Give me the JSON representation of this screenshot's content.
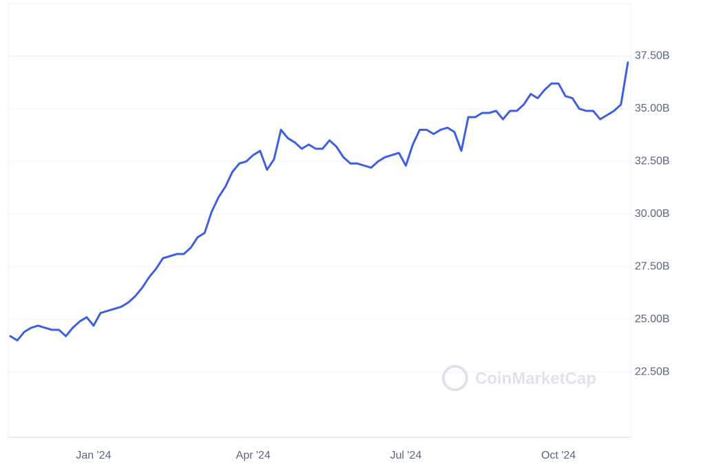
{
  "chart_data": {
    "type": "line",
    "watermark": "CoinMarketCap",
    "color": "#3d5fe0",
    "grid": true,
    "categories": [
      null,
      null,
      null,
      null,
      null,
      null,
      null,
      null,
      null,
      null,
      null,
      null,
      "Jan '24",
      null,
      null,
      null,
      null,
      null,
      null,
      null,
      null,
      null,
      null,
      null,
      null,
      null,
      null,
      null,
      null,
      null,
      null,
      null,
      null,
      null,
      null,
      "Apr '24",
      null,
      null,
      null,
      null,
      null,
      null,
      null,
      null,
      null,
      null,
      null,
      null,
      null,
      null,
      null,
      null,
      null,
      null,
      null,
      null,
      null,
      "Jul '24",
      null,
      null,
      null,
      null,
      null,
      null,
      null,
      null,
      null,
      null,
      null,
      null,
      null,
      null,
      null,
      null,
      null,
      null,
      null,
      null,
      null,
      "Oct '24",
      null,
      null,
      null,
      null,
      null,
      null,
      null,
      null,
      null,
      null
    ],
    "values": [
      24.2,
      24.0,
      24.4,
      24.6,
      24.7,
      24.6,
      24.5,
      24.5,
      24.2,
      24.6,
      24.9,
      25.1,
      24.7,
      25.3,
      25.4,
      25.5,
      25.6,
      25.8,
      26.1,
      26.5,
      27.0,
      27.4,
      27.9,
      28.0,
      28.1,
      28.1,
      28.4,
      28.9,
      29.1,
      30.1,
      30.8,
      31.3,
      32.0,
      32.4,
      32.5,
      32.8,
      33.0,
      32.1,
      32.6,
      34.0,
      33.6,
      33.4,
      33.1,
      33.3,
      33.1,
      33.1,
      33.5,
      33.2,
      32.7,
      32.4,
      32.4,
      32.3,
      32.2,
      32.5,
      32.7,
      32.8,
      32.9,
      32.3,
      33.3,
      34.0,
      34.0,
      33.8,
      34.0,
      34.1,
      33.9,
      33.0,
      34.6,
      34.6,
      34.8,
      34.8,
      34.9,
      34.5,
      34.9,
      34.9,
      35.2,
      35.7,
      35.5,
      35.9,
      36.2,
      36.2,
      35.6,
      35.5,
      35.0,
      34.9,
      34.9,
      34.5,
      34.7,
      34.9,
      35.2,
      37.2
    ],
    "ylim": [
      19.4,
      40
    ],
    "yticks": [
      {
        "value": 22.5,
        "label": "22.50B"
      },
      {
        "value": 25,
        "label": "25.00B"
      },
      {
        "value": 27.5,
        "label": "27.50B"
      },
      {
        "value": 30,
        "label": "30.00B"
      },
      {
        "value": 32.5,
        "label": "32.50B"
      },
      {
        "value": 35,
        "label": "35.00B"
      },
      {
        "value": 37.5,
        "label": "37.50B"
      }
    ]
  }
}
